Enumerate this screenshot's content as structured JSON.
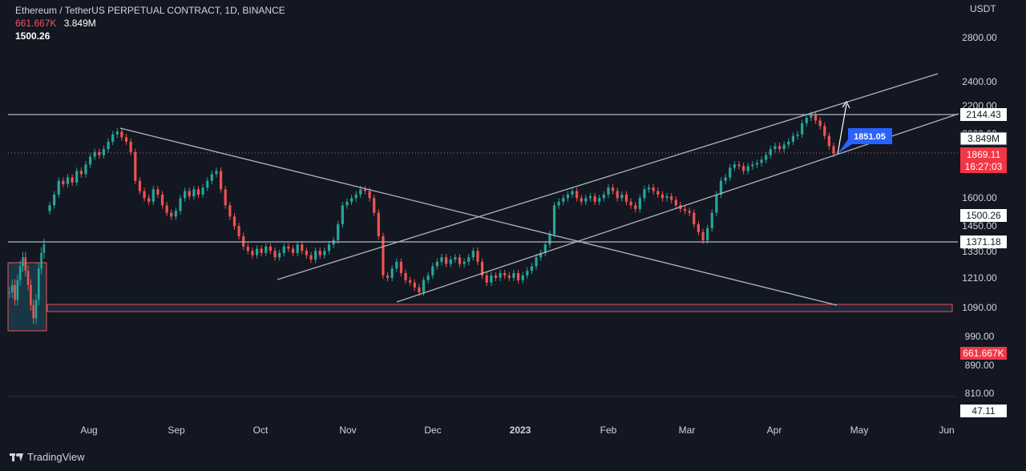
{
  "header": {
    "title": "Ethereum / TetherUS PERPETUAL CONTRACT, 1D, BINANCE",
    "volume_red": "661.667K",
    "volume_white": "3.849M",
    "indicator_value": "1500.26",
    "unit": "USDT"
  },
  "footer": {
    "brand": "TradingView"
  },
  "colors": {
    "background": "#131722",
    "up": "#26a69a",
    "down": "#ef5350",
    "line": "#b2b5be",
    "label_blue": "#2962ff",
    "label_red": "#f23645"
  },
  "chart_data": {
    "type": "candlestick",
    "title": "Ethereum / TetherUS PERPETUAL CONTRACT, 1D, BINANCE",
    "x_ticks": [
      "Aug",
      "Sep",
      "Oct",
      "Nov",
      "Dec",
      "2023",
      "Feb",
      "Mar",
      "Apr",
      "May",
      "Jun"
    ],
    "y_ticks": [
      "2800.00",
      "2400.00",
      "2200.00",
      "2000.00",
      "1600.00",
      "1450.00",
      "1330.00",
      "1210.00",
      "1090.00",
      "990.00",
      "890.00",
      "810.00"
    ],
    "y_scale": "log",
    "price_labels": {
      "resistance": "2144.43",
      "volume": "3.849M",
      "last_price": "1869.11",
      "countdown": "16:27:03",
      "indicator": "1500.26",
      "support": "1371.18",
      "volume_bottom": "661.667K",
      "oscillator": "47.11"
    },
    "annotation": "1851.05",
    "drawn_levels": {
      "horizontal_resistance": 2144.43,
      "horizontal_support": 1371.18,
      "demand_zone": [
        1070,
        1105
      ]
    },
    "closes": [
      1560,
      1620,
      1700,
      1680,
      1720,
      1690,
      1760,
      1740,
      1800,
      1850,
      1880,
      1860,
      1900,
      1950,
      2000,
      2020,
      1980,
      1950,
      1880,
      1700,
      1640,
      1600,
      1580,
      1650,
      1620,
      1560,
      1520,
      1500,
      1530,
      1600,
      1640,
      1610,
      1650,
      1620,
      1660,
      1700,
      1740,
      1760,
      1650,
      1560,
      1500,
      1450,
      1400,
      1350,
      1330,
      1310,
      1340,
      1320,
      1350,
      1330,
      1300,
      1320,
      1350,
      1340,
      1320,
      1360,
      1330,
      1310,
      1290,
      1330,
      1310,
      1330,
      1360,
      1380,
      1460,
      1560,
      1580,
      1600,
      1620,
      1650,
      1640,
      1600,
      1520,
      1400,
      1220,
      1210,
      1250,
      1280,
      1230,
      1200,
      1190,
      1170,
      1150,
      1200,
      1220,
      1260,
      1280,
      1300,
      1270,
      1290,
      1300,
      1270,
      1280,
      1300,
      1330,
      1280,
      1220,
      1190,
      1220,
      1210,
      1230,
      1220,
      1210,
      1230,
      1200,
      1220,
      1240,
      1260,
      1300,
      1320,
      1360,
      1410,
      1560,
      1580,
      1600,
      1620,
      1640,
      1600,
      1580,
      1600,
      1610,
      1580,
      1600,
      1620,
      1660,
      1640,
      1600,
      1620,
      1580,
      1560,
      1540,
      1600,
      1650,
      1660,
      1640,
      1620,
      1600,
      1610,
      1590,
      1560,
      1540,
      1530,
      1520,
      1460,
      1420,
      1380,
      1440,
      1520,
      1620,
      1700,
      1720,
      1780,
      1800,
      1790,
      1760,
      1790,
      1800,
      1810,
      1830,
      1860,
      1900,
      1920,
      1900,
      1930,
      1950,
      1990,
      2000,
      2080,
      2120,
      2140,
      2100,
      2060,
      1990,
      1920,
      1869
    ]
  }
}
